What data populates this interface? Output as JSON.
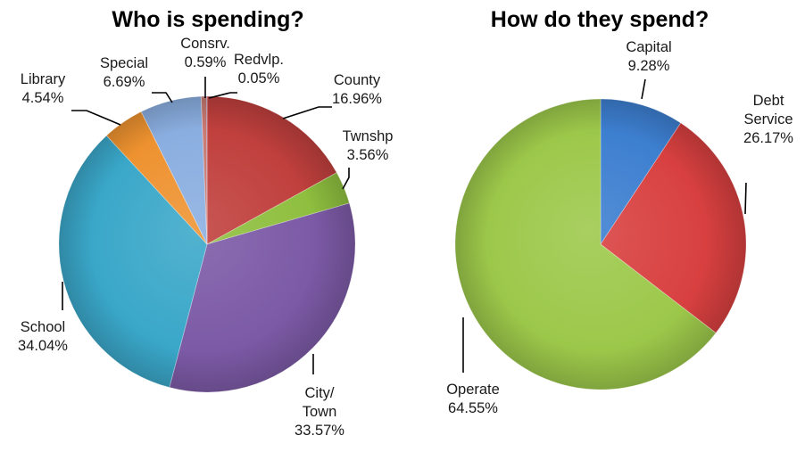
{
  "chart_data": [
    {
      "type": "pie",
      "title": "Who is spending?",
      "slices": [
        {
          "label": [
            "County"
          ],
          "value": 16.96,
          "value_text": "16.96%",
          "color": "#c0403d"
        },
        {
          "label": [
            "Twnshp"
          ],
          "value": 3.56,
          "value_text": "3.56%",
          "color": "#8fbf3f"
        },
        {
          "label": [
            "City/",
            "Town"
          ],
          "value": 33.57,
          "value_text": "33.57%",
          "color": "#7c5aa6"
        },
        {
          "label": [
            "School"
          ],
          "value": 34.04,
          "value_text": "34.04%",
          "color": "#3aa7c9"
        },
        {
          "label": [
            "Library"
          ],
          "value": 4.54,
          "value_text": "4.54%",
          "color": "#ee9230"
        },
        {
          "label": [
            "Special"
          ],
          "value": 6.69,
          "value_text": "6.69%",
          "color": "#8aaee0"
        },
        {
          "label": [
            "Consrv."
          ],
          "value": 0.59,
          "value_text": "0.59%",
          "color": "#c97a73"
        },
        {
          "label": [
            "Redvlp."
          ],
          "value": 0.05,
          "value_text": "0.05%",
          "color": "#5b4d8f"
        }
      ]
    },
    {
      "type": "pie",
      "title": "How do they spend?",
      "slices": [
        {
          "label": [
            "Capital"
          ],
          "value": 9.28,
          "value_text": "9.28%",
          "color": "#3d7fd0"
        },
        {
          "label": [
            "Debt",
            "Service"
          ],
          "value": 26.17,
          "value_text": "26.17%",
          "color": "#d84040"
        },
        {
          "label": [
            "Operate"
          ],
          "value": 64.55,
          "value_text": "64.55%",
          "color": "#9cc84a"
        }
      ]
    }
  ]
}
